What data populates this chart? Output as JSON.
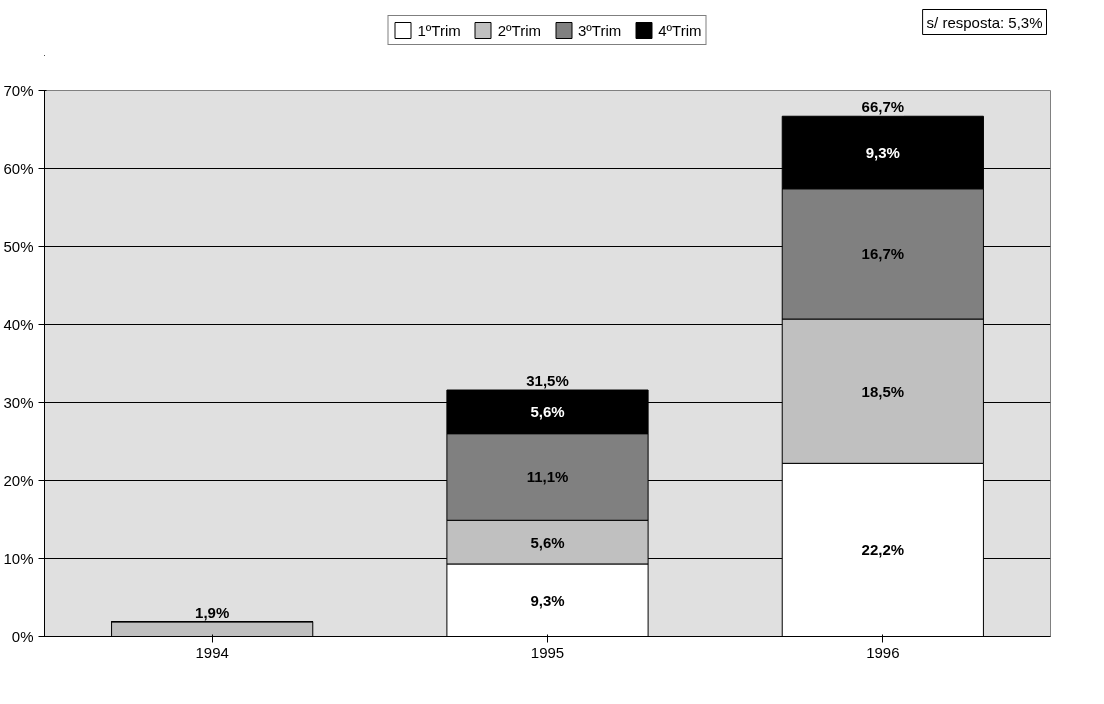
{
  "chart_data": {
    "type": "bar",
    "stacked": true,
    "categories": [
      "1994",
      "1995",
      "1996"
    ],
    "series": [
      {
        "name": "1ºTrim",
        "color": "#ffffff",
        "values": [
          0,
          9.3,
          22.2
        ],
        "value_labels": [
          null,
          "9,3%",
          "22,2%"
        ]
      },
      {
        "name": "2ºTrim",
        "color": "#c0c0c0",
        "values": [
          1.9,
          5.6,
          18.5
        ],
        "value_labels": [
          null,
          "5,6%",
          "18,5%"
        ]
      },
      {
        "name": "3ºTrim",
        "color": "#808080",
        "values": [
          0,
          11.1,
          16.7
        ],
        "value_labels": [
          null,
          "11,1%",
          "16,7%"
        ]
      },
      {
        "name": "4ºTrim",
        "color": "#000000",
        "values": [
          0,
          5.6,
          9.3
        ],
        "value_labels": [
          null,
          "5,6%",
          "9,3%"
        ]
      }
    ],
    "totals": [
      "1,9%",
      "31,5%",
      "66,7%"
    ],
    "ylim": [
      0,
      70
    ],
    "yticks": [
      {
        "value": 0,
        "label": "0%"
      },
      {
        "value": 10,
        "label": "10%"
      },
      {
        "value": 20,
        "label": "20%"
      },
      {
        "value": 30,
        "label": "30%"
      },
      {
        "value": 40,
        "label": "40%"
      },
      {
        "value": 50,
        "label": "50%"
      },
      {
        "value": 60,
        "label": "60%"
      },
      {
        "value": 70,
        "label": "70%"
      }
    ],
    "grid": "y",
    "legend": "top",
    "annotations": [
      "s/ resposta: 5,3%"
    ]
  }
}
